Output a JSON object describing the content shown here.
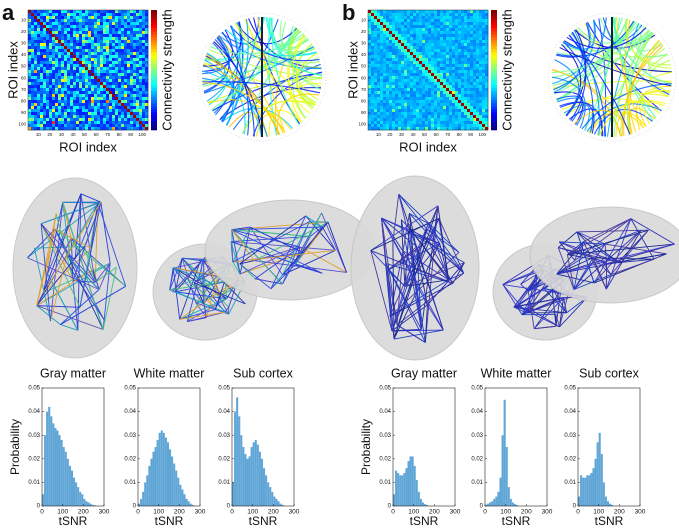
{
  "panel_labels": [
    "a",
    "b"
  ],
  "chart_data": [
    {
      "type": "heatmap",
      "xlabel": "ROI index",
      "ylabel": "ROI index",
      "colorbar_label": "Connectivity strength",
      "colormap": "jet",
      "xlim": [
        1,
        105
      ],
      "ylim": [
        1,
        105
      ],
      "xticks": [
        10,
        20,
        30,
        40,
        50,
        60,
        70,
        80,
        90,
        100
      ],
      "yticks": [
        10,
        20,
        30,
        40,
        50,
        60,
        70,
        80,
        90,
        100
      ]
    },
    {
      "type": "heatmap",
      "xlabel": "ROI index",
      "ylabel": "ROI index",
      "colorbar_label": "Connectivity strength",
      "colormap": "jet",
      "xlim": [
        1,
        105
      ],
      "ylim": [
        1,
        105
      ],
      "xticks": [
        10,
        20,
        30,
        40,
        50,
        60,
        70,
        80,
        90,
        100
      ],
      "yticks": [
        10,
        20,
        30,
        40,
        50,
        60,
        70,
        80,
        90,
        100
      ]
    },
    {
      "type": "histogram",
      "title": "Gray matter",
      "xlabel": "tSNR",
      "ylabel": "Probability",
      "color": "#5fa6d6",
      "bins": [
        0,
        10,
        20,
        30,
        40,
        50,
        60,
        70,
        80,
        90,
        100,
        110,
        120,
        130,
        140,
        150,
        160,
        170,
        180,
        190,
        200,
        210,
        220,
        230,
        240,
        250,
        260,
        270,
        280,
        290,
        300
      ],
      "values": [
        0.005,
        0.03,
        0.04,
        0.042,
        0.038,
        0.035,
        0.033,
        0.032,
        0.03,
        0.028,
        0.025,
        0.023,
        0.02,
        0.017,
        0.015,
        0.012,
        0.01,
        0.008,
        0.006,
        0.005,
        0.003,
        0.002,
        0.0015,
        0.001,
        0.0005,
        0.0003,
        0,
        0,
        0,
        0
      ],
      "xlim": [
        0,
        300
      ],
      "xticks": [
        0,
        100,
        200,
        300
      ],
      "ylim": [
        0,
        0.05
      ],
      "yticks": [
        0,
        0.01,
        0.02,
        0.03,
        0.04,
        0.05
      ]
    },
    {
      "type": "histogram",
      "title": "White matter",
      "xlabel": "tSNR",
      "color": "#5fa6d6",
      "bins": [
        0,
        10,
        20,
        30,
        40,
        50,
        60,
        70,
        80,
        90,
        100,
        110,
        120,
        130,
        140,
        150,
        160,
        170,
        180,
        190,
        200,
        210,
        220,
        230,
        240,
        250,
        260,
        270,
        280,
        290,
        300
      ],
      "values": [
        0.001,
        0.003,
        0.006,
        0.01,
        0.013,
        0.017,
        0.02,
        0.023,
        0.025,
        0.028,
        0.031,
        0.032,
        0.031,
        0.029,
        0.027,
        0.024,
        0.021,
        0.018,
        0.015,
        0.012,
        0.009,
        0.007,
        0.005,
        0.003,
        0.002,
        0.001,
        0.0005,
        0,
        0,
        0
      ],
      "xlim": [
        0,
        300
      ],
      "xticks": [
        0,
        100,
        200,
        300
      ],
      "ylim": [
        0,
        0.05
      ],
      "yticks": [
        0,
        0.01,
        0.02,
        0.03,
        0.04,
        0.05
      ]
    },
    {
      "type": "histogram",
      "title": "Sub cortex",
      "xlabel": "tSNR",
      "color": "#5fa6d6",
      "bins": [
        0,
        10,
        20,
        30,
        40,
        50,
        60,
        70,
        80,
        90,
        100,
        110,
        120,
        130,
        140,
        150,
        160,
        170,
        180,
        190,
        200,
        210,
        220,
        230,
        240,
        250,
        260,
        270,
        280,
        290,
        300
      ],
      "values": [
        0.01,
        0.04,
        0.046,
        0.038,
        0.03,
        0.025,
        0.022,
        0.02,
        0.021,
        0.025,
        0.027,
        0.028,
        0.026,
        0.023,
        0.02,
        0.016,
        0.013,
        0.01,
        0.008,
        0.006,
        0.004,
        0.003,
        0.002,
        0.001,
        0.0005,
        0,
        0,
        0,
        0,
        0
      ],
      "xlim": [
        0,
        300
      ],
      "xticks": [
        0,
        100,
        200,
        300
      ],
      "ylim": [
        0,
        0.05
      ],
      "yticks": [
        0,
        0.01,
        0.02,
        0.03,
        0.04,
        0.05
      ]
    },
    {
      "type": "histogram",
      "title": "Gray matter",
      "xlabel": "tSNR",
      "ylabel": "Probability",
      "color": "#5fa6d6",
      "bins": [
        0,
        10,
        20,
        30,
        40,
        50,
        60,
        70,
        80,
        90,
        100,
        110,
        120,
        130,
        140,
        150,
        160,
        170,
        180,
        190,
        200,
        210,
        220,
        230,
        240,
        250,
        260,
        270,
        280,
        290,
        300
      ],
      "values": [
        0.005,
        0.015,
        0.014,
        0.013,
        0.013,
        0.014,
        0.016,
        0.019,
        0.021,
        0.021,
        0.017,
        0.011,
        0.006,
        0.003,
        0.0015,
        0.0008,
        0.0004,
        0,
        0,
        0,
        0,
        0,
        0,
        0,
        0,
        0,
        0,
        0,
        0,
        0
      ],
      "xlim": [
        0,
        300
      ],
      "xticks": [
        0,
        100,
        200,
        300
      ],
      "ylim": [
        0,
        0.05
      ],
      "yticks": [
        0,
        0.01,
        0.02,
        0.03,
        0.04,
        0.05
      ]
    },
    {
      "type": "histogram",
      "title": "White matter",
      "xlabel": "tSNR",
      "color": "#5fa6d6",
      "bins": [
        0,
        10,
        20,
        30,
        40,
        50,
        60,
        70,
        80,
        90,
        100,
        110,
        120,
        130,
        140,
        150,
        160,
        170,
        180,
        190,
        200,
        210,
        220,
        230,
        240,
        250,
        260,
        270,
        280,
        290,
        300
      ],
      "values": [
        0.0005,
        0.001,
        0.0015,
        0.002,
        0.003,
        0.004,
        0.006,
        0.012,
        0.03,
        0.045,
        0.025,
        0.008,
        0.003,
        0.0015,
        0.0008,
        0.0004,
        0,
        0,
        0,
        0,
        0,
        0,
        0,
        0,
        0,
        0,
        0,
        0,
        0,
        0
      ],
      "xlim": [
        0,
        300
      ],
      "xticks": [
        0,
        100,
        200,
        300
      ],
      "ylim": [
        0,
        0.05
      ],
      "yticks": [
        0,
        0.01,
        0.02,
        0.03,
        0.04,
        0.05
      ]
    },
    {
      "type": "histogram",
      "title": "Sub cortex",
      "xlabel": "tSNR",
      "color": "#5fa6d6",
      "bins": [
        0,
        10,
        20,
        30,
        40,
        50,
        60,
        70,
        80,
        90,
        100,
        110,
        120,
        130,
        140,
        150,
        160,
        170,
        180,
        190,
        200,
        210,
        220,
        230,
        240,
        250,
        260,
        270,
        280,
        290,
        300
      ],
      "values": [
        0.004,
        0.013,
        0.012,
        0.012,
        0.013,
        0.013,
        0.014,
        0.016,
        0.02,
        0.027,
        0.031,
        0.022,
        0.01,
        0.004,
        0.002,
        0.001,
        0.0005,
        0,
        0,
        0,
        0,
        0,
        0,
        0,
        0,
        0,
        0,
        0,
        0,
        0
      ],
      "xlim": [
        0,
        300
      ],
      "xticks": [
        0,
        100,
        200,
        300
      ],
      "ylim": [
        0,
        0.05
      ],
      "yticks": [
        0,
        0.01,
        0.02,
        0.03,
        0.04,
        0.05
      ]
    }
  ]
}
